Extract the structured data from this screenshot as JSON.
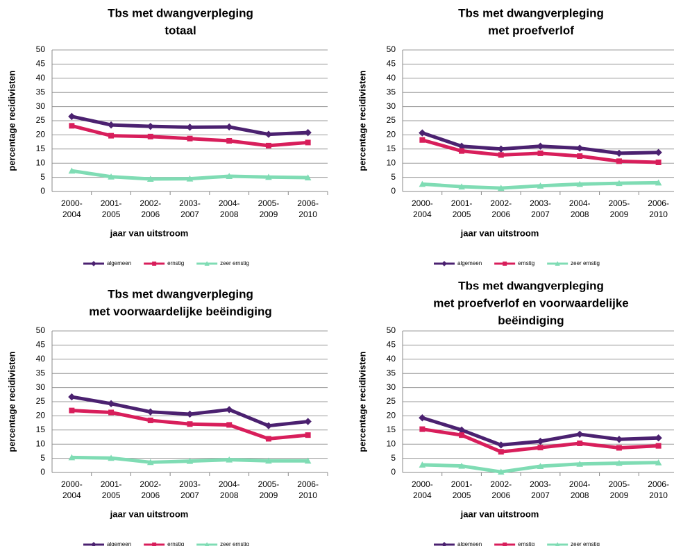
{
  "chart_data": [
    {
      "type": "line",
      "title": [
        "Tbs met dwangverpleging",
        "totaal"
      ],
      "ylabel": "percentage recidivisten",
      "xlabel": "jaar van uitstroom",
      "categories": [
        "2000-2004",
        "2001-2005",
        "2002-2006",
        "2003-2007",
        "2004-2008",
        "2005-2009",
        "2006-2010"
      ],
      "series": [
        {
          "name": "algemeen",
          "color": "#4b2170",
          "marker": "diamond",
          "values": [
            26.5,
            23.5,
            23,
            22.7,
            22.8,
            20.2,
            20.8
          ]
        },
        {
          "name": "ernstig",
          "color": "#d81e5b",
          "marker": "square",
          "values": [
            23.2,
            19.7,
            19.4,
            18.7,
            17.9,
            16.2,
            17.3
          ]
        },
        {
          "name": "zeer ernstig",
          "color": "#7fdcb4",
          "marker": "triangle",
          "values": [
            7.3,
            5.2,
            4.4,
            4.5,
            5.4,
            5.1,
            4.9
          ]
        }
      ],
      "ylim": [
        0,
        50
      ],
      "yticks": [
        0,
        5,
        10,
        15,
        20,
        25,
        30,
        35,
        40,
        45,
        50
      ],
      "grid": true,
      "legend": "bottom"
    },
    {
      "type": "line",
      "title": [
        "Tbs met dwangverpleging",
        "met proefverlof"
      ],
      "ylabel": "percentage recidivisten",
      "xlabel": "jaar van uitstroom",
      "categories": [
        "2000-2004",
        "2001-2005",
        "2002-2006",
        "2003-2007",
        "2004-2008",
        "2005-2009",
        "2006-2010"
      ],
      "series": [
        {
          "name": "algemeen",
          "color": "#4b2170",
          "marker": "diamond",
          "values": [
            20.7,
            16.0,
            15.0,
            16.0,
            15.3,
            13.5,
            13.8
          ]
        },
        {
          "name": "ernstig",
          "color": "#d81e5b",
          "marker": "square",
          "values": [
            18.2,
            14.3,
            12.9,
            13.5,
            12.5,
            10.7,
            10.3
          ]
        },
        {
          "name": "zeer ernstig",
          "color": "#7fdcb4",
          "marker": "triangle",
          "values": [
            2.6,
            1.7,
            1.2,
            2.0,
            2.6,
            2.9,
            3.1
          ]
        }
      ],
      "ylim": [
        0,
        50
      ],
      "yticks": [
        0,
        5,
        10,
        15,
        20,
        25,
        30,
        35,
        40,
        45,
        50
      ],
      "grid": true,
      "legend": "bottom"
    },
    {
      "type": "line",
      "title": [
        "Tbs met dwangverpleging",
        "met voorwaardelijke  beëindiging"
      ],
      "ylabel": "percentage recidivisten",
      "xlabel": "jaar van uitstroom",
      "categories": [
        "2000-2004",
        "2001-2005",
        "2002-2006",
        "2003-2007",
        "2004-2008",
        "2005-2009",
        "2006-2010"
      ],
      "series": [
        {
          "name": "algemeen",
          "color": "#4b2170",
          "marker": "diamond",
          "values": [
            26.7,
            24.3,
            21.4,
            20.6,
            22.2,
            16.5,
            18.0
          ]
        },
        {
          "name": "ernstig",
          "color": "#d81e5b",
          "marker": "square",
          "values": [
            21.9,
            21.2,
            18.4,
            17.1,
            16.8,
            11.9,
            13.2
          ]
        },
        {
          "name": "zeer ernstig",
          "color": "#7fdcb4",
          "marker": "triangle",
          "values": [
            5.3,
            5.1,
            3.6,
            4.0,
            4.5,
            4.1,
            4.1
          ]
        }
      ],
      "ylim": [
        0,
        50
      ],
      "yticks": [
        0,
        5,
        10,
        15,
        20,
        25,
        30,
        35,
        40,
        45,
        50
      ],
      "grid": true,
      "legend": "bottom"
    },
    {
      "type": "line",
      "title": [
        "Tbs met dwangverpleging",
        "met proefverlof en voorwaardelijke",
        "beëindiging"
      ],
      "ylabel": "percentage recidivisten",
      "xlabel": "jaar van uitstroom",
      "categories": [
        "2000-2004",
        "2001-2005",
        "2002-2006",
        "2003-2007",
        "2004-2008",
        "2005-2009",
        "2006-2010"
      ],
      "series": [
        {
          "name": "algemeen",
          "color": "#4b2170",
          "marker": "diamond",
          "values": [
            19.3,
            15.0,
            9.7,
            11.0,
            13.5,
            11.7,
            12.2
          ]
        },
        {
          "name": "ernstig",
          "color": "#d81e5b",
          "marker": "square",
          "values": [
            15.3,
            13.2,
            7.3,
            8.8,
            10.3,
            8.7,
            9.4
          ]
        },
        {
          "name": "zeer ernstig",
          "color": "#7fdcb4",
          "marker": "triangle",
          "values": [
            2.7,
            2.3,
            0.2,
            2.2,
            3.0,
            3.3,
            3.5
          ]
        }
      ],
      "ylim": [
        0,
        50
      ],
      "yticks": [
        0,
        5,
        10,
        15,
        20,
        25,
        30,
        35,
        40,
        45,
        50
      ],
      "grid": true,
      "legend": "bottom"
    }
  ]
}
